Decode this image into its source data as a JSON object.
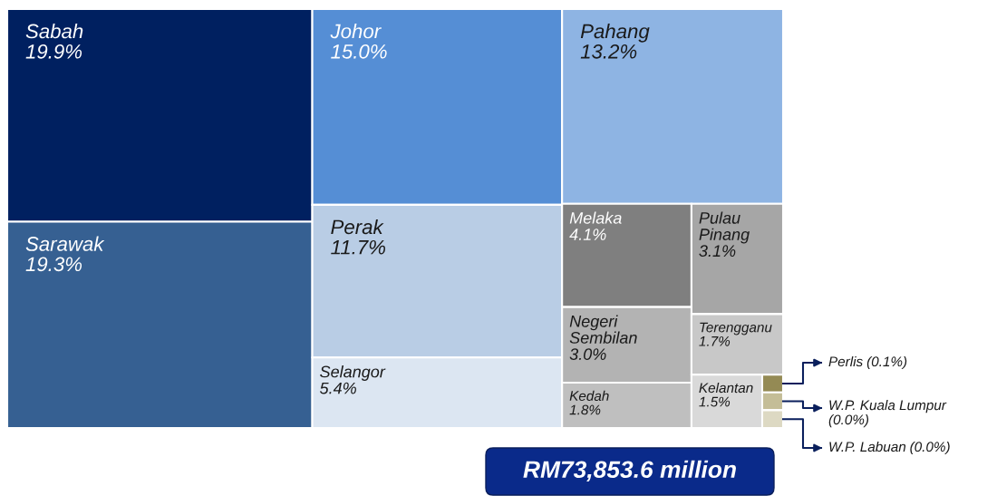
{
  "chart_data": {
    "type": "other",
    "categories": [
      "Sabah",
      "Sarawak",
      "Johor",
      "Perak",
      "Selangor",
      "Pahang",
      "Melaka",
      "Pulau\nPinang",
      "Negeri\nSembilan",
      "Kedah",
      "Terengganu",
      "Kelantan",
      "Perlis",
      "W.P. Kuala Lumpur",
      "W.P. Labuan"
    ],
    "values": [
      19.9,
      19.3,
      15.0,
      11.7,
      5.4,
      13.2,
      4.1,
      3.1,
      3.0,
      1.8,
      1.7,
      1.5,
      0.1,
      0.0,
      0.0
    ],
    "value_labels": [
      "19.9%",
      "19.3%",
      "15.0%",
      "11.7%",
      "5.4%",
      "13.2%",
      "4.1%",
      "3.1%",
      "3.0%",
      "1.8%",
      "1.7%",
      "1.5%",
      "(0.1%)",
      "(0.0%)",
      "(0.0%)"
    ],
    "colors": [
      "#002060",
      "#366092",
      "#558ed5",
      "#b9cde5",
      "#dce6f2",
      "#8eb4e3",
      "#7f7f7f",
      "#a6a6a6",
      "#b3b3b3",
      "#bfbfbf",
      "#c8c8c8",
      "#d9d9d9",
      "#948a54",
      "#c4bd97",
      "#ddd9c3"
    ],
    "annotations": [
      "RM73,853.6 million"
    ]
  }
}
